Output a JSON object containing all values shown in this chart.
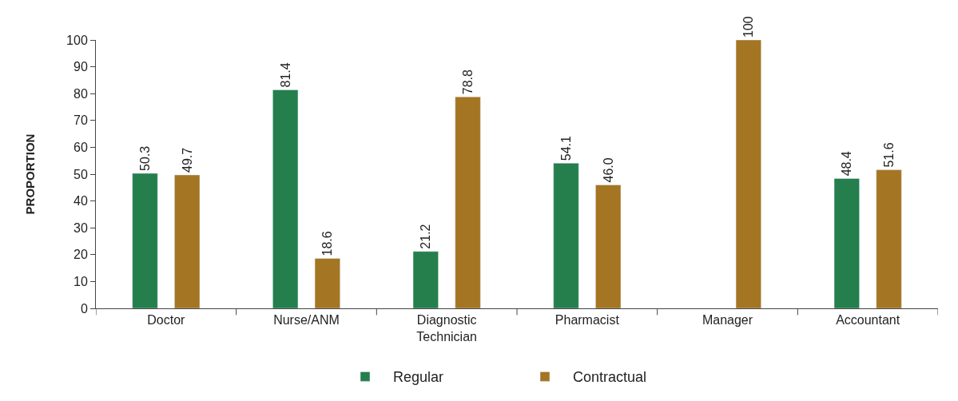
{
  "chart_data": {
    "type": "bar",
    "ylabel": "PROPORTION",
    "categories": [
      "Doctor",
      "Nurse/ANM",
      "Diagnostic\nTechnician",
      "Pharmacist",
      "Manager",
      "Accountant"
    ],
    "series": [
      {
        "name": "Regular",
        "color": "#247f4c",
        "values": [
          50.3,
          81.4,
          21.2,
          54.1,
          null,
          48.4
        ],
        "value_labels": [
          "50.3",
          "81.4",
          "21.2",
          "54.1",
          null,
          "48.4"
        ]
      },
      {
        "name": "Contractual",
        "color": "#a47523",
        "values": [
          49.7,
          18.6,
          78.8,
          46.0,
          100,
          51.6
        ],
        "value_labels": [
          "49.7",
          "18.6",
          "78.8",
          "46.0",
          "100",
          "51.6"
        ]
      }
    ],
    "ylim": [
      0,
      100
    ],
    "yticks": [
      0,
      10,
      20,
      30,
      40,
      50,
      60,
      70,
      80,
      90,
      100
    ],
    "legend": "bottom"
  }
}
